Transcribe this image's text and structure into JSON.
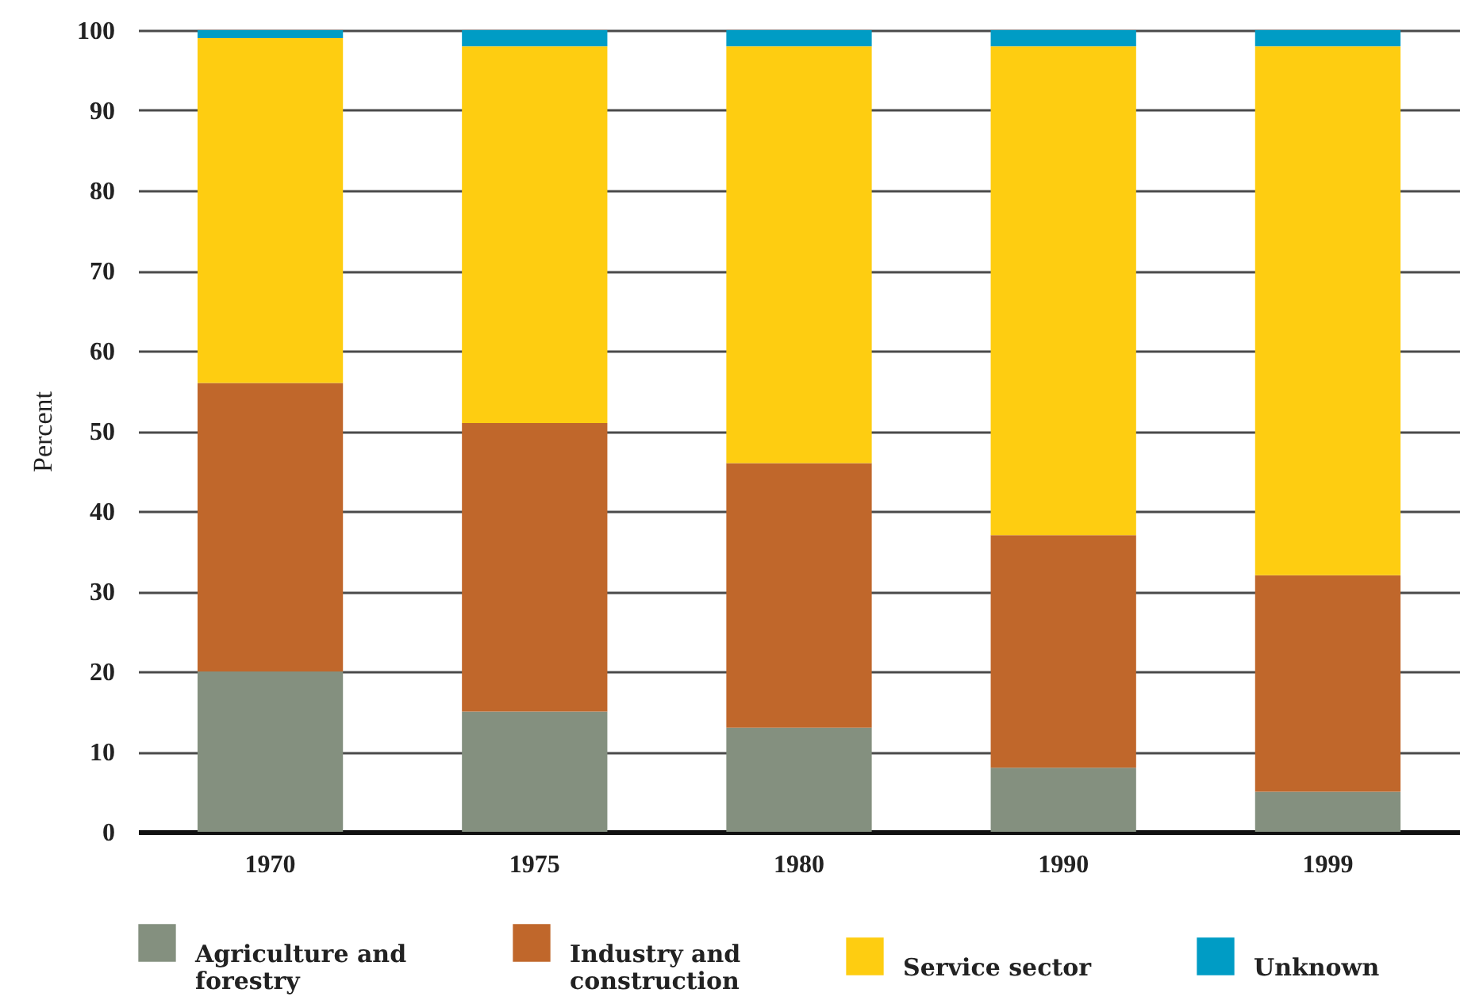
{
  "chart_data": {
    "type": "bar",
    "stacked": true,
    "categories": [
      "1970",
      "1975",
      "1980",
      "1990",
      "1999"
    ],
    "series": [
      {
        "name": "Agriculture and forestry",
        "color": "#84907f",
        "values": [
          20,
          15,
          13,
          8,
          5
        ]
      },
      {
        "name": "Industry and construction",
        "color": "#c0672b",
        "values": [
          36,
          36,
          33,
          29,
          27
        ]
      },
      {
        "name": "Service sector",
        "color": "#fecd11",
        "values": [
          43,
          47,
          52,
          61,
          66
        ]
      },
      {
        "name": "Unknown",
        "color": "#009cc5",
        "values": [
          1,
          2,
          2,
          2,
          2
        ]
      }
    ],
    "ylabel": "Percent",
    "ylim": [
      0,
      100
    ],
    "yticks": [
      0,
      10,
      20,
      30,
      40,
      50,
      60,
      70,
      80,
      90,
      100
    ],
    "grid": "y",
    "legend": "bottom"
  }
}
